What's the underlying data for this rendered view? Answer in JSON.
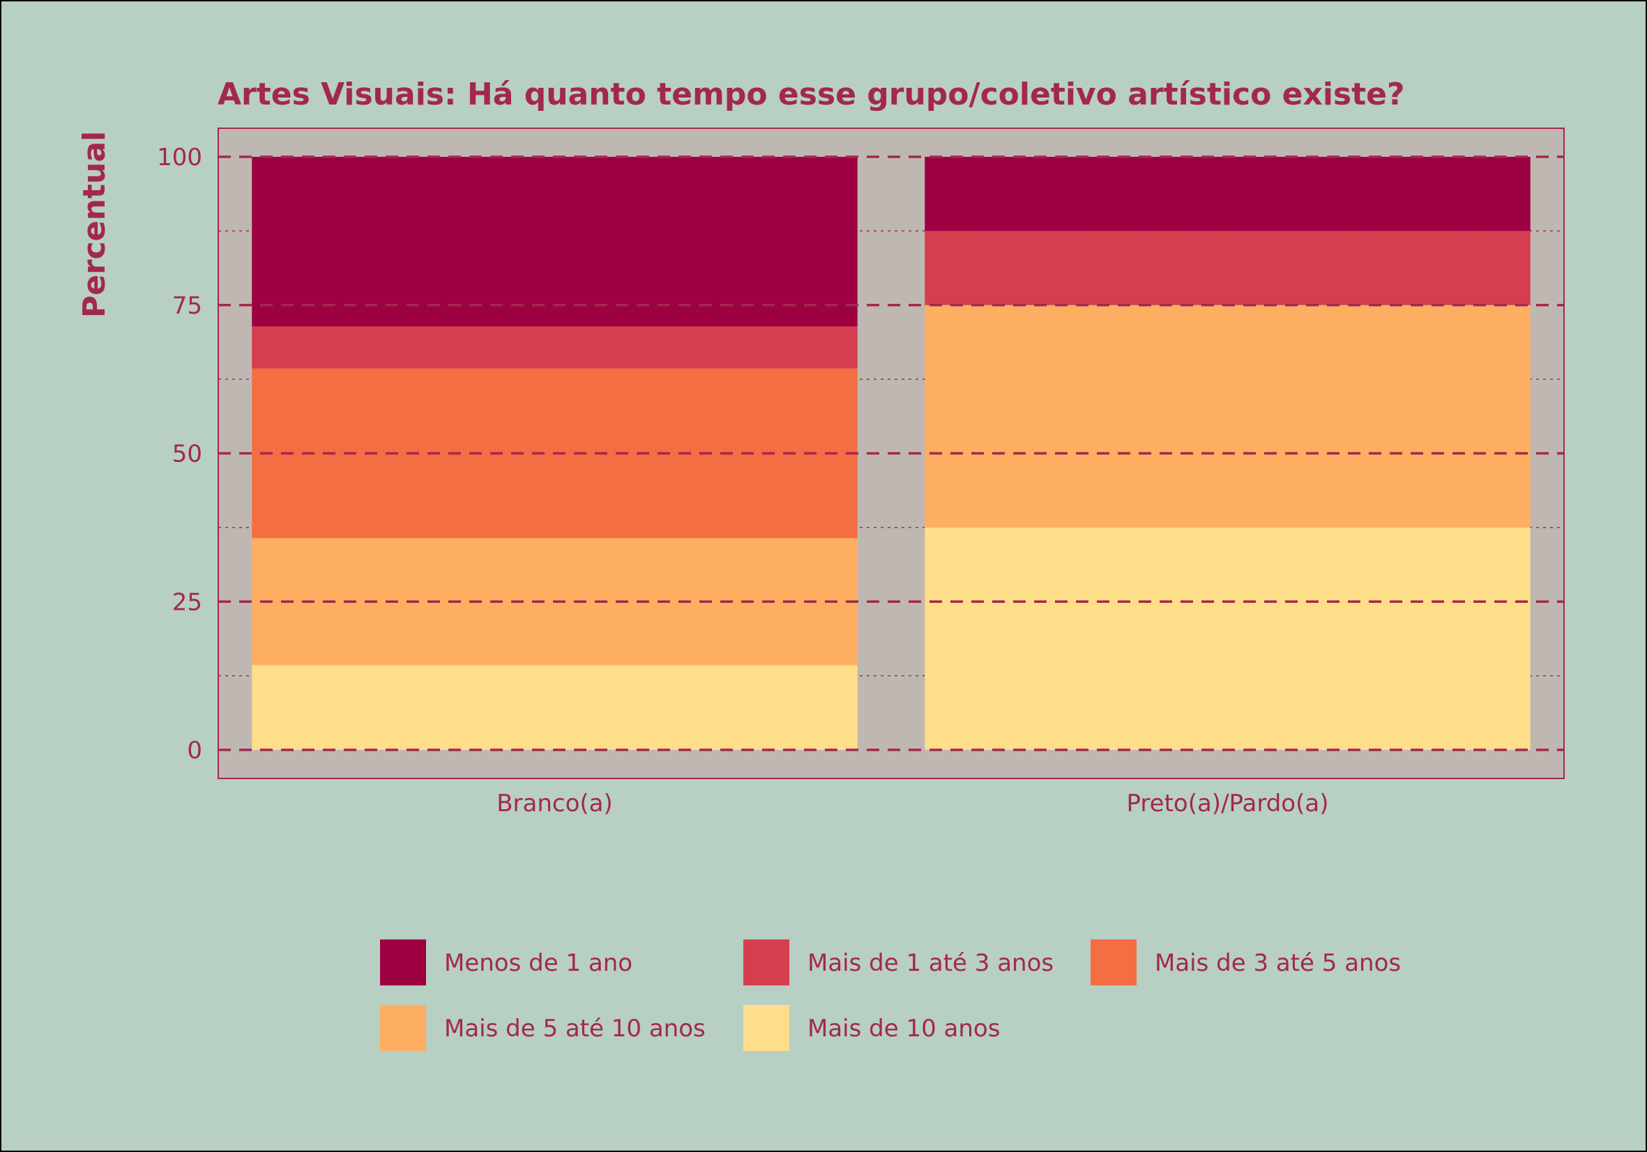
{
  "chart_data": {
    "type": "bar",
    "stacked": true,
    "title": "Artes Visuais: Há quanto tempo esse grupo/coletivo artístico existe?",
    "xlabel": "",
    "ylabel": "Percentual",
    "ylim": [
      0,
      100
    ],
    "yticks": [
      "0",
      "25",
      "50",
      "75",
      "100"
    ],
    "grid": true,
    "legend_position": "bottom",
    "categories": [
      "Branco(a)",
      "Preto(a)/Pardo(a)"
    ],
    "series": [
      {
        "name": "Mais de 10 anos",
        "color": "#fede88",
        "values": [
          14.3,
          37.5
        ]
      },
      {
        "name": "Mais de 5 até 10 anos",
        "color": "#fdae61",
        "values": [
          21.4,
          37.5
        ]
      },
      {
        "name": "Mais de 3 até 5 anos",
        "color": "#f46d43",
        "values": [
          28.6,
          0
        ]
      },
      {
        "name": "Mais de 1 até 3 anos",
        "color": "#d53e4f",
        "values": [
          7.1,
          12.5
        ]
      },
      {
        "name": "Menos de 1 ano",
        "color": "#9e0142",
        "values": [
          28.6,
          12.5
        ]
      }
    ],
    "legend_order": [
      "Menos de 1 ano",
      "Mais de 1 até 3 anos",
      "Mais de 3 até 5 anos",
      "Mais de 5 até 10 anos",
      "Mais de 10 anos"
    ]
  },
  "colors": {
    "background": "#b8cfc4",
    "panel": "#bfb8b2",
    "accent": "#a3284e"
  }
}
